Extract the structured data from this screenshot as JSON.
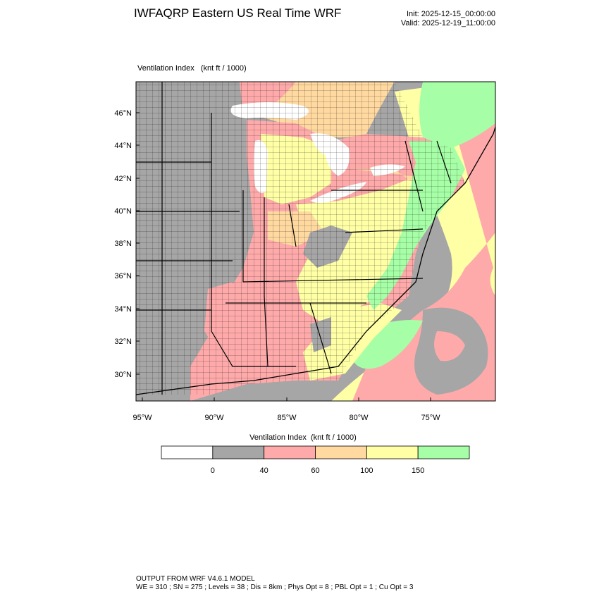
{
  "header": {
    "title": "IWFAQRP Eastern US Real Time WRF",
    "init": "Init: 2025-12-15_00:00:00",
    "valid": "Valid: 2025-12-19_11:00:00"
  },
  "map": {
    "field_label": "Ventilation Index   (knt ft / 1000)",
    "lat_labels": [
      "46°N",
      "44°N",
      "42°N",
      "40°N",
      "38°N",
      "36°N",
      "34°N",
      "32°N",
      "30°N"
    ],
    "lon_labels": [
      "95°W",
      "90°W",
      "85°W",
      "80°W",
      "75°W"
    ],
    "colors": {
      "no_data_gray": "#a6a6a6",
      "pink": "#ffaaaa",
      "orange": "#ffd9a0",
      "yellow": "#ffffa6",
      "green": "#a6ffa6",
      "lake": "#ffffff",
      "boundary": "#000000"
    }
  },
  "legend": {
    "title": "Ventilation Index  (knt ft / 1000)",
    "bins": [
      {
        "color": "#ffffff"
      },
      {
        "color": "#a6a6a6"
      },
      {
        "color": "#ffaaaa"
      },
      {
        "color": "#ffd9a0"
      },
      {
        "color": "#ffffa6"
      },
      {
        "color": "#a6ffa6"
      }
    ],
    "tick_labels": [
      "0",
      "40",
      "60",
      "100",
      "150"
    ]
  },
  "footer": {
    "line1": "OUTPUT FROM WRF V4.6.1 MODEL",
    "line2": "WE = 310 ; SN = 275 ; Levels = 38 ; Dis = 8km ; Phys Opt = 8 ; PBL Opt = 1 ; Cu Opt = 3"
  }
}
